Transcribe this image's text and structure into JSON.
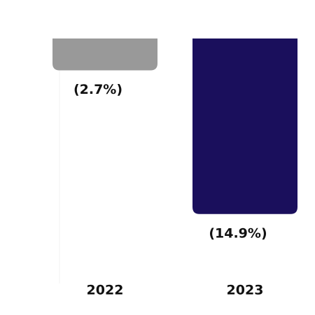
{
  "chart_data": {
    "type": "bar",
    "categories": [
      "2022",
      "2023"
    ],
    "series": [
      {
        "values": [
          -2.7,
          -14.9
        ],
        "value_labels": [
          "(2.7%)",
          "(14.9%)"
        ],
        "colors": [
          "#999999",
          "#1a0f5c"
        ]
      }
    ],
    "ylim": [
      -20.5,
      0
    ]
  }
}
